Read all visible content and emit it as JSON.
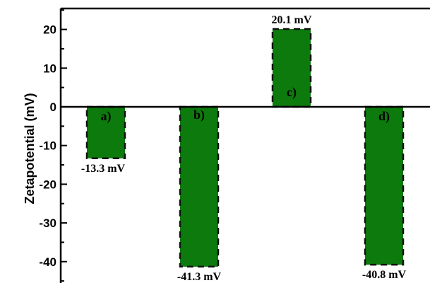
{
  "chart_data": {
    "type": "bar",
    "title": "",
    "xlabel": "",
    "ylabel": "Zetapotential (mV)",
    "ylim": [
      -43,
      25
    ],
    "yticks": [
      20,
      10,
      0,
      -10,
      -20,
      -30,
      -40
    ],
    "ytick_labels": [
      "20",
      "10",
      "0",
      "-10",
      "-20",
      "-30",
      "-40"
    ],
    "categories": [
      "a)",
      "b)",
      "c)",
      "d)"
    ],
    "values": [
      -13.3,
      -41.3,
      20.1,
      -40.8
    ],
    "data_labels": [
      "-13.3 mV",
      "-41.3 mV",
      "20.1 mV",
      "-40.8 mV"
    ],
    "bar_color": "#0d7a0d",
    "bar_edge_style": "dashed",
    "grid": false,
    "legend": "none"
  }
}
